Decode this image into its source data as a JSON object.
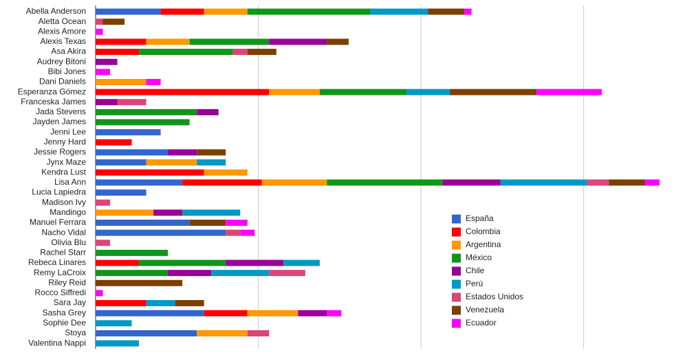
{
  "chart_data": {
    "type": "stacked-bar-horizontal",
    "categories": [
      "Abella Anderson",
      "Aletta Ocean",
      "Alexis Amore",
      "Alexis Texas",
      "Asa Akira",
      "Audrey Bitoni",
      "Bibi Jones",
      "Dani Daniels",
      "Esperanza Gómez",
      "Franceska James",
      "Jada Stevens",
      "Jayden James",
      "Jenni Lee",
      "Jenny Hard",
      "Jessie Rogers",
      "Jynx Maze",
      "Kendra Lust",
      "Lisa Ann",
      "Lucia Lapiedra",
      "Madison Ivy",
      "Mandingo",
      "Manuel Ferrara",
      "Nacho Vidal",
      "Olivia Blu",
      "Rachel Starr",
      "Rebeca Linares",
      "Remy LaCroix",
      "Riley Reid",
      "Rocco Siffredi",
      "Sara Jay",
      "Sasha Grey",
      "Sophie Dee",
      "Stoya",
      "Valentina Nappi"
    ],
    "series": [
      {
        "name": "España",
        "color": "#3366cc",
        "values": [
          9,
          0,
          0,
          0,
          0,
          0,
          0,
          0,
          0,
          0,
          0,
          0,
          9,
          0,
          10,
          7,
          0,
          12,
          7,
          0,
          0,
          13,
          18,
          0,
          0,
          0,
          0,
          0,
          0,
          0,
          15,
          0,
          14,
          0
        ]
      },
      {
        "name": "Colombia",
        "color": "#ff0000",
        "values": [
          6,
          0,
          0,
          7,
          6,
          0,
          0,
          0,
          24,
          0,
          0,
          0,
          0,
          5,
          0,
          0,
          15,
          11,
          0,
          0,
          0,
          0,
          0,
          0,
          0,
          6,
          0,
          0,
          0,
          7,
          6,
          0,
          0,
          0
        ]
      },
      {
        "name": "Argentina",
        "color": "#ff9900",
        "values": [
          6,
          0,
          0,
          6,
          0,
          0,
          0,
          7,
          7,
          0,
          0,
          0,
          0,
          0,
          0,
          7,
          6,
          9,
          0,
          0,
          8,
          0,
          0,
          0,
          0,
          0,
          0,
          0,
          0,
          0,
          7,
          0,
          7,
          0
        ]
      },
      {
        "name": "México",
        "color": "#109618",
        "values": [
          17,
          0,
          0,
          11,
          13,
          0,
          0,
          0,
          12,
          0,
          14,
          13,
          0,
          0,
          0,
          0,
          0,
          16,
          0,
          0,
          0,
          0,
          0,
          0,
          10,
          12,
          10,
          0,
          0,
          0,
          0,
          0,
          0,
          0
        ]
      },
      {
        "name": "Chile",
        "color": "#990099",
        "values": [
          0,
          0,
          0,
          8,
          0,
          3,
          0,
          0,
          0,
          3,
          3,
          0,
          0,
          0,
          4,
          0,
          0,
          8,
          0,
          0,
          4,
          0,
          0,
          0,
          0,
          8,
          6,
          0,
          0,
          0,
          4,
          0,
          0,
          0
        ]
      },
      {
        "name": "Perú",
        "color": "#0099c6",
        "values": [
          8,
          0,
          0,
          0,
          0,
          0,
          0,
          0,
          6,
          0,
          0,
          0,
          0,
          0,
          0,
          4,
          0,
          12,
          0,
          0,
          8,
          0,
          0,
          0,
          0,
          5,
          8,
          0,
          0,
          4,
          0,
          5,
          0,
          6
        ]
      },
      {
        "name": "Estados Unidos",
        "color": "#dd4477",
        "values": [
          0,
          1,
          0,
          0,
          2,
          0,
          0,
          0,
          0,
          4,
          0,
          0,
          0,
          0,
          0,
          0,
          0,
          3,
          0,
          2,
          0,
          0,
          2,
          2,
          0,
          0,
          5,
          0,
          0,
          0,
          0,
          0,
          3,
          0
        ]
      },
      {
        "name": "Venezuela",
        "color": "#7b3f00",
        "values": [
          5,
          3,
          0,
          3,
          4,
          0,
          0,
          0,
          12,
          0,
          0,
          0,
          0,
          0,
          4,
          0,
          0,
          5,
          0,
          0,
          0,
          5,
          0,
          0,
          0,
          0,
          0,
          12,
          0,
          4,
          0,
          0,
          0,
          0
        ]
      },
      {
        "name": "Ecuador",
        "color": "#ff00ff",
        "values": [
          1,
          0,
          1,
          0,
          0,
          0,
          2,
          2,
          9,
          0,
          0,
          0,
          0,
          0,
          0,
          0,
          0,
          2,
          0,
          0,
          0,
          3,
          2,
          0,
          0,
          0,
          0,
          0,
          1,
          0,
          2,
          0,
          0,
          0
        ]
      }
    ],
    "xlim": [
      0,
      80
    ],
    "xticks": [
      0,
      22.5,
      45,
      67.5
    ],
    "grid": true,
    "legend": "right"
  }
}
